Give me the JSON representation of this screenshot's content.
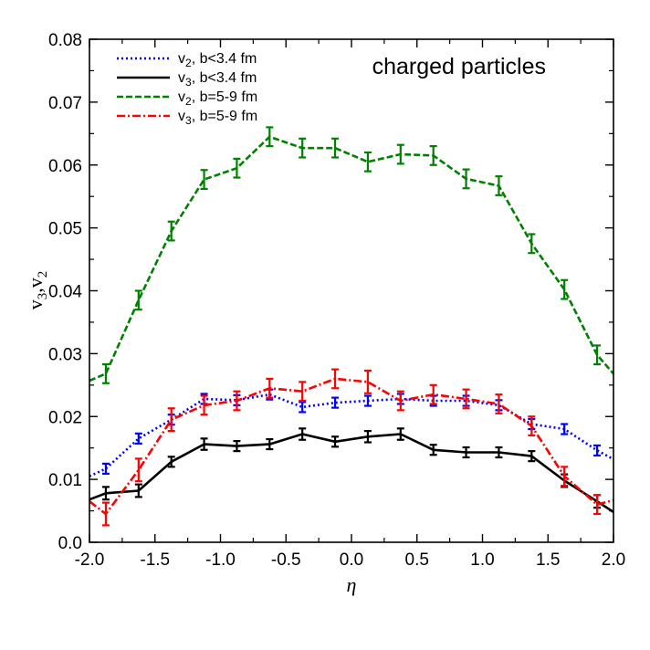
{
  "chart_data": {
    "type": "line",
    "title": "",
    "annotation": "charged particles",
    "xlabel": "η",
    "ylabel": {
      "main": "v",
      "sub1": "3",
      "sep": ",v",
      "sub2": "2"
    },
    "xlim": [
      -2.0,
      2.0
    ],
    "ylim": [
      0.0,
      0.08
    ],
    "xticks": [
      -2.0,
      -1.5,
      -1.0,
      -0.5,
      0.0,
      0.5,
      1.0,
      1.5,
      2.0
    ],
    "xtick_labels": [
      "-2.0",
      "-1.5",
      "-1.0",
      "-0.5",
      "0.0",
      "0.5",
      "1.0",
      "1.5",
      "2.0"
    ],
    "yticks": [
      0.0,
      0.01,
      0.02,
      0.03,
      0.04,
      0.05,
      0.06,
      0.07,
      0.08
    ],
    "ytick_labels": [
      "0.0",
      "0.01",
      "0.02",
      "0.03",
      "0.04",
      "0.05",
      "0.06",
      "0.07",
      "0.08"
    ],
    "grid": false,
    "legend_position": "top-left",
    "x": [
      -1.875,
      -1.625,
      -1.375,
      -1.125,
      -0.875,
      -0.625,
      -0.375,
      -0.125,
      0.125,
      0.375,
      0.625,
      0.875,
      1.125,
      1.375,
      1.625,
      1.875
    ],
    "series": [
      {
        "name": "v2, b<3.4 fm",
        "legend_label": {
          "main": "v",
          "sub": "2",
          "rest": ", b<3.4 fm"
        },
        "color": "#0000ff",
        "style": "dotted",
        "x_start": -2.0,
        "y_start": 0.0105,
        "x_end": 2.0,
        "y_end": 0.0132,
        "values": [
          0.0117,
          0.0165,
          0.0195,
          0.0228,
          0.0226,
          0.0235,
          0.0215,
          0.0222,
          0.0225,
          0.0228,
          0.0225,
          0.0225,
          0.0218,
          0.0188,
          0.018,
          0.0146
        ],
        "errors": [
          0.0008,
          0.0008,
          0.0008,
          0.0008,
          0.0008,
          0.0008,
          0.0008,
          0.0008,
          0.0008,
          0.0008,
          0.0008,
          0.0008,
          0.0008,
          0.0008,
          0.0008,
          0.0008
        ]
      },
      {
        "name": "v3, b<3.4 fm",
        "legend_label": {
          "main": "v",
          "sub": "3",
          "rest": ", b<3.4 fm"
        },
        "color": "#000000",
        "style": "solid",
        "x_start": -2.0,
        "y_start": 0.0068,
        "x_end": 2.0,
        "y_end": 0.0048,
        "values": [
          0.0078,
          0.0082,
          0.0128,
          0.0156,
          0.0153,
          0.0156,
          0.0172,
          0.016,
          0.0168,
          0.0172,
          0.0147,
          0.0143,
          0.0143,
          0.0137,
          0.0098,
          0.0065
        ],
        "errors": [
          0.001,
          0.001,
          0.0008,
          0.0009,
          0.0008,
          0.0008,
          0.0009,
          0.0008,
          0.0009,
          0.0009,
          0.0008,
          0.0008,
          0.0008,
          0.0008,
          0.001,
          0.001
        ]
      },
      {
        "name": "v2, b=5-9 fm",
        "legend_label": {
          "main": "v",
          "sub": "2",
          "rest": ", b=5-9 fm"
        },
        "color": "#008000",
        "style": "dashed",
        "x_start": -2.0,
        "y_start": 0.0257,
        "x_end": 2.0,
        "y_end": 0.0268,
        "values": [
          0.0268,
          0.0385,
          0.0495,
          0.0577,
          0.0595,
          0.0645,
          0.0627,
          0.0627,
          0.0605,
          0.0617,
          0.0615,
          0.0578,
          0.0567,
          0.0475,
          0.0402,
          0.0298
        ],
        "errors": [
          0.0015,
          0.0015,
          0.0015,
          0.0015,
          0.0015,
          0.0015,
          0.0015,
          0.0015,
          0.0015,
          0.0015,
          0.0015,
          0.0015,
          0.0015,
          0.0015,
          0.0015,
          0.0015
        ]
      },
      {
        "name": "v3, b=5-9 fm",
        "legend_label": {
          "main": "v",
          "sub": "3",
          "rest": ", b=5-9 fm"
        },
        "color": "#ff0000",
        "style": "dashdot",
        "x_start": -2.0,
        "y_start": 0.0065,
        "x_end": 2.0,
        "y_end": 0.0067,
        "values": [
          0.0045,
          0.0115,
          0.0195,
          0.0218,
          0.0225,
          0.0245,
          0.024,
          0.026,
          0.0255,
          0.0225,
          0.0235,
          0.0228,
          0.022,
          0.0185,
          0.0105,
          0.006
        ],
        "errors": [
          0.0018,
          0.0018,
          0.0018,
          0.0015,
          0.0015,
          0.0015,
          0.0015,
          0.0015,
          0.0018,
          0.0015,
          0.0015,
          0.0015,
          0.0015,
          0.0015,
          0.0015,
          0.0015
        ]
      }
    ]
  }
}
